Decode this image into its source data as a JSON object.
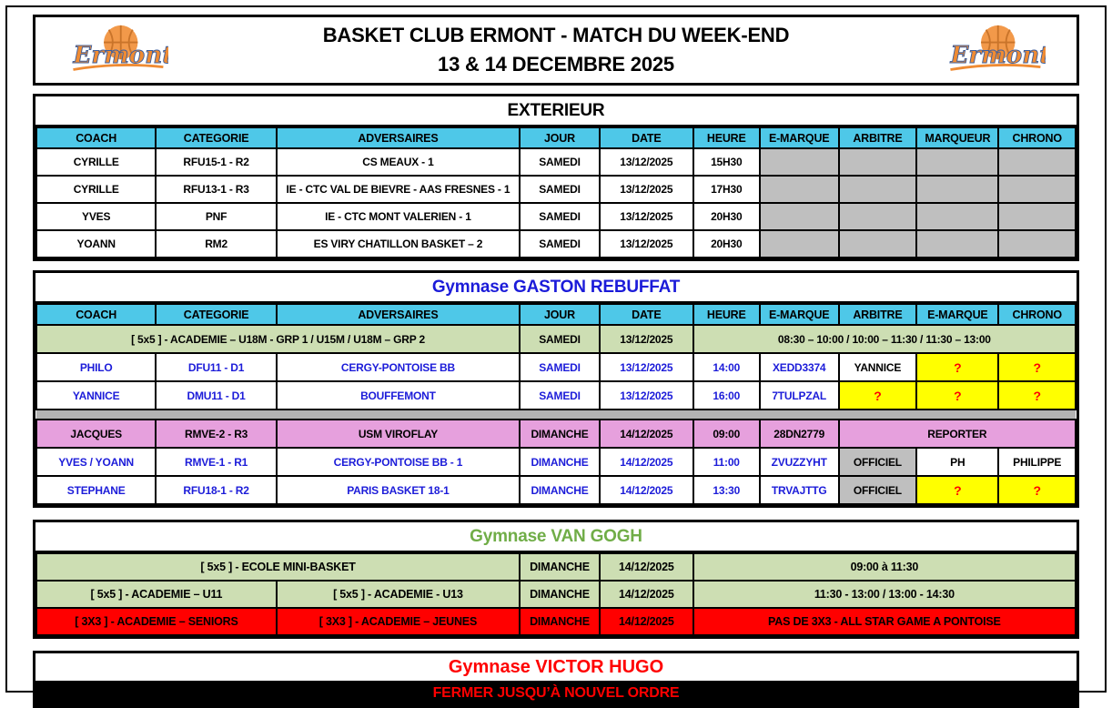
{
  "banner": {
    "title_line1": "BASKET CLUB ERMONT - MATCH DU WEEK-END",
    "title_line2": "13 & 14 DECEMBRE 2025",
    "logo_text": "Ermont"
  },
  "colors": {
    "header_cyan": "#4ec8e8",
    "cell_gray": "#bfbfbf",
    "separator_gray": "#b3b3b3",
    "row_green": "#cddeb3",
    "row_pink": "#e6a0dd",
    "cell_yellow": "#ffff00",
    "row_red": "#ff0000",
    "text_blue": "#1c1cd9",
    "title_blue": "#1b1bd9",
    "title_green": "#70ad47",
    "title_red": "#ff0000"
  },
  "tables": {
    "exterieur": {
      "title": "EXTERIEUR",
      "columns": [
        "COACH",
        "CATEGORIE",
        "ADVERSAIRES",
        "JOUR",
        "DATE",
        "HEURE",
        "E-MARQUE",
        "ARBITRE",
        "MARQUEUR",
        "CHRONO"
      ],
      "rows": [
        {
          "cells": [
            {
              "t": "CYRILLE"
            },
            {
              "t": "RFU15-1 - R2"
            },
            {
              "t": "CS MEAUX - 1"
            },
            {
              "t": "SAMEDI"
            },
            {
              "t": "13/12/2025"
            },
            {
              "t": "15H30"
            },
            {
              "c": "g"
            },
            {
              "c": "g"
            },
            {
              "c": "g"
            },
            {
              "c": "g"
            }
          ]
        },
        {
          "cells": [
            {
              "t": "CYRILLE"
            },
            {
              "t": "RFU13-1 - R3"
            },
            {
              "t": "IE - CTC VAL DE BIEVRE - AAS FRESNES - 1"
            },
            {
              "t": "SAMEDI"
            },
            {
              "t": "13/12/2025"
            },
            {
              "t": "17H30"
            },
            {
              "c": "g"
            },
            {
              "c": "g"
            },
            {
              "c": "g"
            },
            {
              "c": "g"
            }
          ]
        },
        {
          "cells": [
            {
              "t": "YVES"
            },
            {
              "t": "PNF"
            },
            {
              "t": "IE - CTC MONT VALERIEN - 1"
            },
            {
              "t": "SAMEDI"
            },
            {
              "t": "13/12/2025"
            },
            {
              "t": "20H30"
            },
            {
              "c": "g"
            },
            {
              "c": "g"
            },
            {
              "c": "g"
            },
            {
              "c": "g"
            }
          ]
        },
        {
          "cells": [
            {
              "t": "YOANN"
            },
            {
              "t": "RM2"
            },
            {
              "t": "ES VIRY CHATILLON BASKET – 2"
            },
            {
              "t": "SAMEDI"
            },
            {
              "t": "13/12/2025"
            },
            {
              "t": "20H30"
            },
            {
              "c": "g"
            },
            {
              "c": "g"
            },
            {
              "c": "g"
            },
            {
              "c": "g"
            }
          ]
        }
      ]
    },
    "rebuffat": {
      "title": "Gymnase GASTON REBUFFAT",
      "columns": [
        "COACH",
        "CATEGORIE",
        "ADVERSAIRES",
        "JOUR",
        "DATE",
        "HEURE",
        "E-MARQUE",
        "ARBITRE",
        "E-MARQUE",
        "CHRONO"
      ],
      "rows": [
        {
          "cells": [
            {
              "t": "[ 5x5 ] - ACADEMIE – U18M - GRP 1 / U15M / U18M – GRP 2",
              "span": 3,
              "c": "grn"
            },
            {
              "t": "SAMEDI",
              "c": "grn"
            },
            {
              "t": "13/12/2025",
              "c": "grn"
            },
            {
              "t": "08:30 – 10:00 / 10:00 – 11:30 / 11:30 – 13:00",
              "span": 5,
              "c": "grn"
            }
          ]
        },
        {
          "cells": [
            {
              "t": "PHILO",
              "c": "b"
            },
            {
              "t": "DFU11 - D1",
              "c": "b"
            },
            {
              "t": "CERGY-PONTOISE BB",
              "c": "b"
            },
            {
              "t": "SAMEDI",
              "c": "b"
            },
            {
              "t": "13/12/2025",
              "c": "b"
            },
            {
              "t": "14:00",
              "c": "b"
            },
            {
              "t": "XEDD3374",
              "c": "b"
            },
            {
              "t": "YANNICE"
            },
            {
              "t": "?",
              "c": "y"
            },
            {
              "t": "?",
              "c": "y"
            }
          ]
        },
        {
          "cells": [
            {
              "t": "YANNICE",
              "c": "b"
            },
            {
              "t": "DMU11 - D1",
              "c": "b"
            },
            {
              "t": "BOUFFEMONT",
              "c": "b"
            },
            {
              "t": "SAMEDI",
              "c": "b"
            },
            {
              "t": "13/12/2025",
              "c": "b"
            },
            {
              "t": "16:00",
              "c": "b"
            },
            {
              "t": "7TULPZAL",
              "c": "b"
            },
            {
              "t": "?",
              "c": "y"
            },
            {
              "t": "?",
              "c": "y"
            },
            {
              "t": "?",
              "c": "y"
            }
          ]
        },
        {
          "separator": true
        },
        {
          "cells": [
            {
              "t": "JACQUES",
              "c": "p"
            },
            {
              "t": "RMVE-2 - R3",
              "c": "p"
            },
            {
              "t": "USM VIROFLAY",
              "c": "p"
            },
            {
              "t": "DIMANCHE",
              "c": "p"
            },
            {
              "t": "14/12/2025",
              "c": "p"
            },
            {
              "t": "09:00",
              "c": "p"
            },
            {
              "t": "28DN2779",
              "c": "p"
            },
            {
              "t": "REPORTER",
              "span": 3,
              "c": "p"
            }
          ]
        },
        {
          "cells": [
            {
              "t": "YVES / YOANN",
              "c": "b"
            },
            {
              "t": "RMVE-1 - R1",
              "c": "b"
            },
            {
              "t": "CERGY-PONTOISE BB - 1",
              "c": "b"
            },
            {
              "t": "DIMANCHE",
              "c": "b"
            },
            {
              "t": "14/12/2025",
              "c": "b"
            },
            {
              "t": "11:00",
              "c": "b"
            },
            {
              "t": "ZVUZZYHT",
              "c": "b"
            },
            {
              "t": "OFFICIEL",
              "c": "g"
            },
            {
              "t": "PH"
            },
            {
              "t": "PHILIPPE"
            }
          ]
        },
        {
          "cells": [
            {
              "t": "STEPHANE",
              "c": "b"
            },
            {
              "t": "RFU18-1 - R2",
              "c": "b"
            },
            {
              "t": "PARIS BASKET 18-1",
              "c": "b"
            },
            {
              "t": "DIMANCHE",
              "c": "b"
            },
            {
              "t": "14/12/2025",
              "c": "b"
            },
            {
              "t": "13:30",
              "c": "b"
            },
            {
              "t": "TRVAJTTG",
              "c": "b"
            },
            {
              "t": "OFFICIEL",
              "c": "g"
            },
            {
              "t": "?",
              "c": "y"
            },
            {
              "t": "?",
              "c": "y"
            }
          ]
        }
      ]
    },
    "vangogh": {
      "title": "Gymnase VAN GOGH",
      "rows": [
        {
          "cells": [
            {
              "t": "[ 5x5 ] - ECOLE MINI-BASKET",
              "span": 3,
              "c": "grn"
            },
            {
              "t": "DIMANCHE",
              "c": "grn"
            },
            {
              "t": "14/12/2025",
              "c": "grn"
            },
            {
              "t": "09:00 à 11:30",
              "span": 5,
              "c": "grn"
            }
          ]
        },
        {
          "cells": [
            {
              "t": "[ 5x5 ] - ACADEMIE – U11",
              "span": 2,
              "c": "grn"
            },
            {
              "t": "[ 5x5 ] - ACADEMIE - U13",
              "c": "grn"
            },
            {
              "t": "DIMANCHE",
              "c": "grn"
            },
            {
              "t": "14/12/2025",
              "c": "grn"
            },
            {
              "t": "11:30 - 13:00    /    13:00 - 14:30",
              "span": 5,
              "c": "grn"
            }
          ]
        },
        {
          "cells": [
            {
              "t": "[ 3X3 ] - ACADEMIE – SENIORS",
              "span": 2,
              "c": "red"
            },
            {
              "t": "[ 3X3 ] - ACADEMIE – JEUNES",
              "c": "red"
            },
            {
              "t": "DIMANCHE",
              "c": "red"
            },
            {
              "t": "14/12/2025",
              "c": "red"
            },
            {
              "t": "PAS DE 3X3 -  ALL STAR GAME A PONTOISE",
              "span": 5,
              "c": "red"
            }
          ]
        }
      ]
    },
    "victorhugo": {
      "title": "Gymnase VICTOR HUGO",
      "notice": "FERMER JUSQU’À NOUVEL ORDRE"
    }
  }
}
